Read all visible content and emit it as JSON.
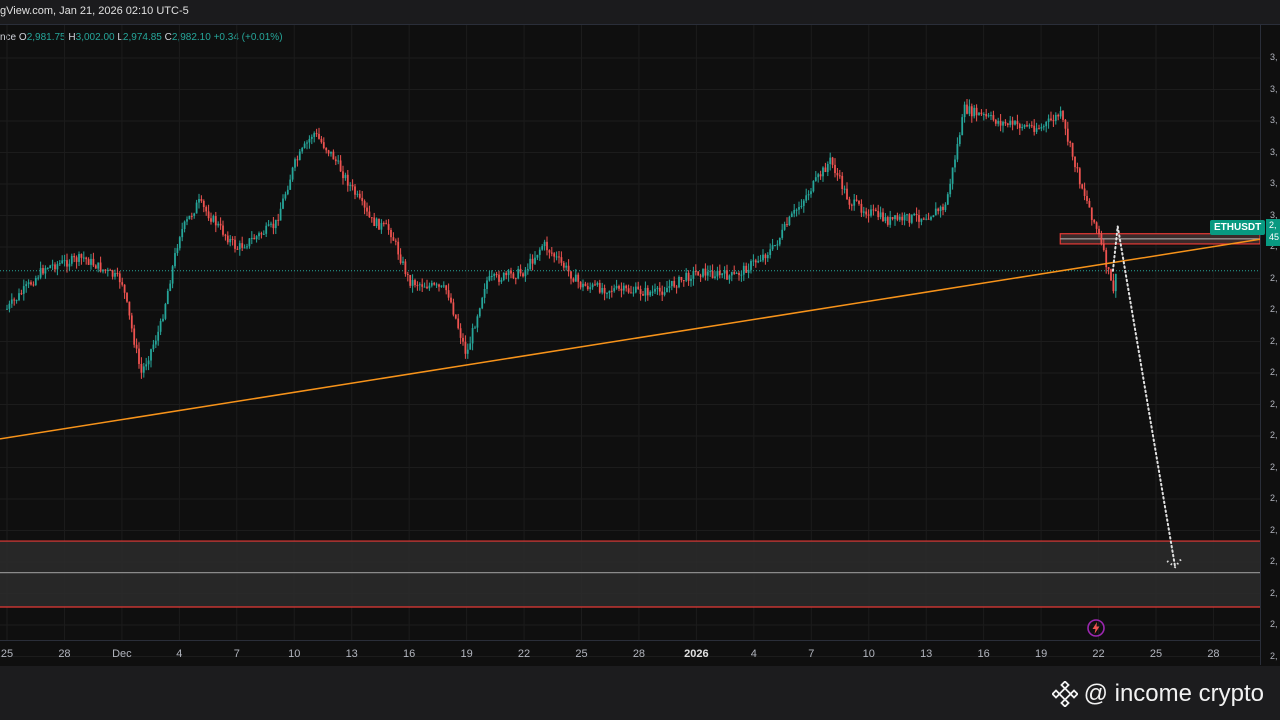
{
  "header": {
    "source_text": "gView.com, Jan 21, 2026 02:10 UTC-5"
  },
  "ohlc": {
    "prefix": "nce",
    "open_label": "O",
    "open": "2,981.75",
    "high_label": "H",
    "high": "3,002.00",
    "low_label": "L",
    "low": "2,974.85",
    "close_label": "C",
    "close": "2,982.10",
    "change": "+0.34 (+0.01%)"
  },
  "symbol": {
    "label": "ETHUSDT",
    "price_tag_top": "2,",
    "price_tag_bottom": "45"
  },
  "price_axis_ticks": [
    "3,",
    "3,",
    "3,",
    "3,",
    "3,",
    "3,",
    "2,",
    "2,",
    "2,",
    "2,",
    "2,",
    "2,",
    "2,",
    "2,",
    "2,",
    "2,",
    "2,",
    "2,",
    "2,",
    "2,"
  ],
  "time_axis": [
    {
      "label": "25",
      "bold": false
    },
    {
      "label": "28",
      "bold": false
    },
    {
      "label": "Dec",
      "bold": false
    },
    {
      "label": "4",
      "bold": false
    },
    {
      "label": "7",
      "bold": false
    },
    {
      "label": "10",
      "bold": false
    },
    {
      "label": "13",
      "bold": false
    },
    {
      "label": "16",
      "bold": false
    },
    {
      "label": "19",
      "bold": false
    },
    {
      "label": "22",
      "bold": false
    },
    {
      "label": "25",
      "bold": false
    },
    {
      "label": "28",
      "bold": false
    },
    {
      "label": "2026",
      "bold": true
    },
    {
      "label": "4",
      "bold": false
    },
    {
      "label": "7",
      "bold": false
    },
    {
      "label": "10",
      "bold": false
    },
    {
      "label": "13",
      "bold": false
    },
    {
      "label": "16",
      "bold": false
    },
    {
      "label": "19",
      "bold": false
    },
    {
      "label": "22",
      "bold": false
    },
    {
      "label": "25",
      "bold": false
    },
    {
      "label": "28",
      "bold": false
    }
  ],
  "watermark": {
    "text": "@ income crypto"
  },
  "colors": {
    "up": "#26a69a",
    "down": "#ef5350",
    "trendline": "#f7931a",
    "zone_border": "#e53935",
    "zone_fill": "#2b2b2b",
    "projection": "#e0e0e0"
  },
  "chart_data": {
    "type": "candlestick",
    "title": "",
    "symbol": "ETHUSDT",
    "interval": "intraday",
    "x_range": [
      "2025-11-24",
      "2026-01-29"
    ],
    "last_bar": {
      "open": 2981.75,
      "high": 3002.0,
      "low": 2974.85,
      "close": 2982.1
    },
    "close_path": [
      {
        "date": "2025-11-24",
        "price": 2900
      },
      {
        "date": "2025-11-26",
        "price": 2990
      },
      {
        "date": "2025-11-28",
        "price": 3010
      },
      {
        "date": "2025-11-30",
        "price": 2960
      },
      {
        "date": "2025-12-01",
        "price": 2760
      },
      {
        "date": "2025-12-02",
        "price": 2860
      },
      {
        "date": "2025-12-03",
        "price": 3060
      },
      {
        "date": "2025-12-04",
        "price": 3130
      },
      {
        "date": "2025-12-06",
        "price": 3030
      },
      {
        "date": "2025-12-08",
        "price": 3080
      },
      {
        "date": "2025-12-09",
        "price": 3210
      },
      {
        "date": "2025-12-10",
        "price": 3280
      },
      {
        "date": "2025-12-11",
        "price": 3230
      },
      {
        "date": "2025-12-12",
        "price": 3160
      },
      {
        "date": "2025-12-13",
        "price": 3090
      },
      {
        "date": "2025-12-14",
        "price": 3070
      },
      {
        "date": "2025-12-15",
        "price": 2960
      },
      {
        "date": "2025-12-17",
        "price": 2940
      },
      {
        "date": "2025-12-18",
        "price": 2800
      },
      {
        "date": "2025-12-19",
        "price": 2960
      },
      {
        "date": "2025-12-21",
        "price": 2980
      },
      {
        "date": "2025-12-22",
        "price": 3040
      },
      {
        "date": "2025-12-24",
        "price": 2950
      },
      {
        "date": "2025-12-26",
        "price": 2940
      },
      {
        "date": "2025-12-28",
        "price": 2935
      },
      {
        "date": "2025-12-30",
        "price": 2980
      },
      {
        "date": "2026-01-01",
        "price": 2970
      },
      {
        "date": "2026-01-03",
        "price": 3030
      },
      {
        "date": "2026-01-04",
        "price": 3100
      },
      {
        "date": "2026-01-06",
        "price": 3220
      },
      {
        "date": "2026-01-07",
        "price": 3130
      },
      {
        "date": "2026-01-09",
        "price": 3090
      },
      {
        "date": "2026-01-11",
        "price": 3100
      },
      {
        "date": "2026-01-12",
        "price": 3120
      },
      {
        "date": "2026-01-13",
        "price": 3330
      },
      {
        "date": "2026-01-15",
        "price": 3300
      },
      {
        "date": "2026-01-17",
        "price": 3290
      },
      {
        "date": "2026-01-18",
        "price": 3320
      },
      {
        "date": "2026-01-19",
        "price": 3180
      },
      {
        "date": "2026-01-20",
        "price": 3060
      },
      {
        "date": "2026-01-20T18:00",
        "price": 2940
      },
      {
        "date": "2026-01-21",
        "price": 2982
      }
    ],
    "trendline": {
      "from": {
        "date": "2025-11-24",
        "price": 2620
      },
      "to": {
        "date": "2026-01-29",
        "price": 3050
      }
    },
    "resistance_zone": {
      "from_date": "2026-01-18",
      "to_date": "2026-01-29",
      "top": 3062,
      "bottom": 3040
    },
    "target_zone": {
      "top": 2400,
      "mid": 2332,
      "bottom": 2258
    },
    "projection_path": [
      {
        "date": "2026-01-20T18:00",
        "price": 2982
      },
      {
        "date": "2026-01-21",
        "price": 3078
      },
      {
        "date": "2026-01-24",
        "price": 2344
      }
    ]
  }
}
